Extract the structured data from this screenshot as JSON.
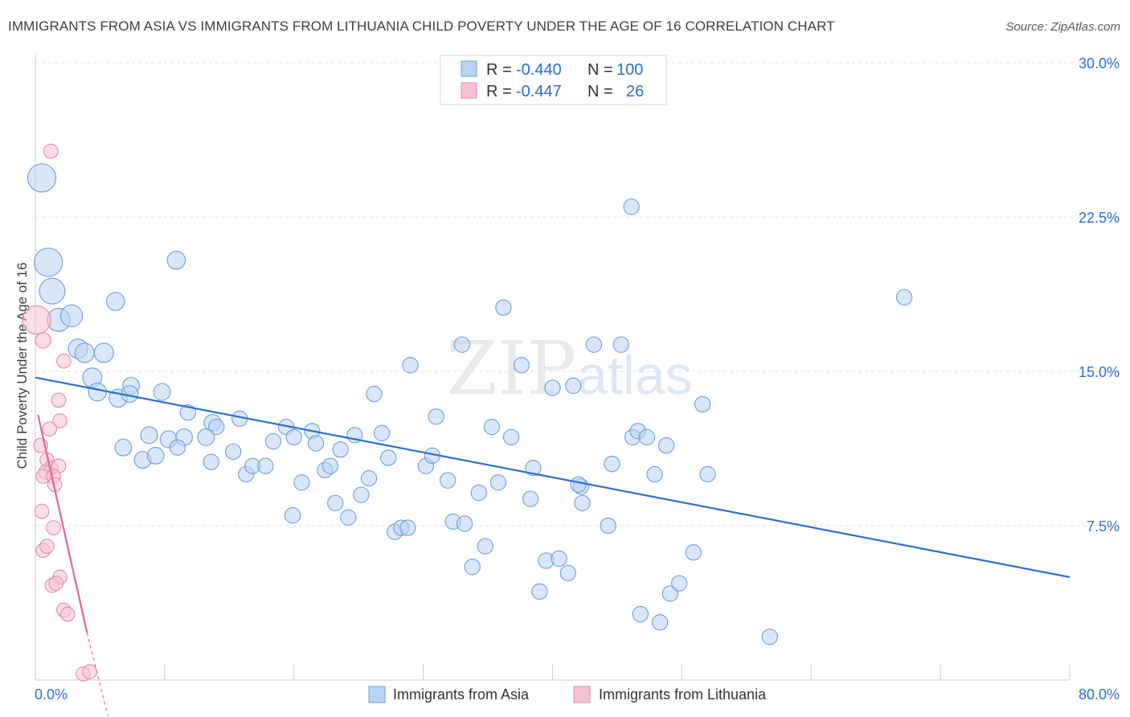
{
  "title": "IMMIGRANTS FROM ASIA VS IMMIGRANTS FROM LITHUANIA CHILD POVERTY UNDER THE AGE OF 16 CORRELATION CHART",
  "source": "Source: ZipAtlas.com",
  "watermark": {
    "zip": "ZIP",
    "atlas": "atlas"
  },
  "colors": {
    "asia_fill": "#b9d3f2",
    "asia_stroke": "#6e9fdb",
    "asia_line": "#2d6fcf",
    "lith_fill": "#f7c3d3",
    "lith_stroke": "#e48aa8",
    "lith_line": "#e06690",
    "value_text": "#2d6fcf",
    "label_text": "#333333"
  },
  "stats": {
    "asia": {
      "r_label": "R =",
      "r": "-0.440",
      "n_label": "N =",
      "n": "100"
    },
    "lith": {
      "r_label": "R =",
      "r": "-0.447",
      "n_label": "N =",
      "n": "26"
    }
  },
  "chart_data": {
    "type": "scatter",
    "xlabel": "",
    "ylabel": "Child Poverty Under the Age of 16",
    "xlim": [
      0,
      80
    ],
    "ylim": [
      0,
      30
    ],
    "x_tick_labels": [
      {
        "value": 0,
        "label": "0.0%"
      },
      {
        "value": 80,
        "label": "80.0%"
      }
    ],
    "y_tick_labels": [
      {
        "value": 7.5,
        "label": "7.5%"
      },
      {
        "value": 15,
        "label": "15.0%"
      },
      {
        "value": 22.5,
        "label": "22.5%"
      },
      {
        "value": 30,
        "label": "30.0%"
      }
    ],
    "grid": "horizontal dashed",
    "legend_position": "bottom-center",
    "series": [
      {
        "name": "Immigrants from Asia",
        "trend": {
          "x": [
            0,
            80
          ],
          "y": [
            14.7,
            5.0
          ]
        },
        "points": [
          [
            0.5,
            24.4,
            2.2
          ],
          [
            1,
            20.3,
            2.2
          ],
          [
            1.3,
            18.9,
            2
          ],
          [
            1.8,
            17.5,
            1.8
          ],
          [
            2.8,
            17.7,
            1.7
          ],
          [
            3.3,
            16.1,
            1.5
          ],
          [
            3.8,
            15.9,
            1.5
          ],
          [
            5.3,
            15.9,
            1.5
          ],
          [
            4.4,
            14.7,
            1.5
          ],
          [
            4.8,
            14.0,
            1.4
          ],
          [
            6.2,
            18.4,
            1.4
          ],
          [
            6.4,
            13.7,
            1.4
          ],
          [
            7.4,
            14.3,
            1.3
          ],
          [
            9.8,
            14.0,
            1.3
          ],
          [
            7.3,
            13.9,
            1.3
          ],
          [
            10.9,
            20.4,
            1.4
          ],
          [
            11.8,
            13.0,
            1.2
          ],
          [
            13.7,
            12.5,
            1.3
          ],
          [
            14.0,
            12.3,
            1.2
          ],
          [
            15.8,
            12.7,
            1.2
          ],
          [
            6.8,
            11.3,
            1.3
          ],
          [
            8.8,
            11.9,
            1.3
          ],
          [
            10.3,
            11.7,
            1.3
          ],
          [
            11.5,
            11.8,
            1.3
          ],
          [
            11.0,
            11.3,
            1.2
          ],
          [
            13.2,
            11.8,
            1.3
          ],
          [
            8.3,
            10.7,
            1.3
          ],
          [
            9.3,
            10.9,
            1.3
          ],
          [
            13.6,
            10.6,
            1.2
          ],
          [
            15.3,
            11.1,
            1.2
          ],
          [
            16.3,
            10.0,
            1.2
          ],
          [
            16.8,
            10.4,
            1.2
          ],
          [
            17.8,
            10.4,
            1.2
          ],
          [
            18.4,
            11.6,
            1.2
          ],
          [
            19.4,
            12.3,
            1.2
          ],
          [
            19.9,
            8.0,
            1.2
          ],
          [
            20.0,
            11.8,
            1.2
          ],
          [
            20.6,
            9.6,
            1.2
          ],
          [
            21.4,
            12.1,
            1.2
          ],
          [
            21.7,
            11.5,
            1.2
          ],
          [
            22.4,
            10.2,
            1.2
          ],
          [
            22.8,
            10.4,
            1.2
          ],
          [
            23.2,
            8.6,
            1.2
          ],
          [
            23.6,
            11.2,
            1.2
          ],
          [
            24.2,
            7.9,
            1.2
          ],
          [
            24.7,
            11.9,
            1.2
          ],
          [
            25.2,
            9.0,
            1.2
          ],
          [
            25.8,
            9.8,
            1.2
          ],
          [
            26.2,
            13.9,
            1.2
          ],
          [
            26.8,
            12.0,
            1.2
          ],
          [
            27.3,
            10.8,
            1.2
          ],
          [
            27.8,
            7.2,
            1.2
          ],
          [
            28.3,
            7.4,
            1.2
          ],
          [
            28.8,
            7.4,
            1.2
          ],
          [
            29.0,
            15.3,
            1.2
          ],
          [
            30.2,
            10.4,
            1.2
          ],
          [
            30.7,
            10.9,
            1.2
          ],
          [
            31.0,
            12.8,
            1.2
          ],
          [
            31.9,
            9.7,
            1.2
          ],
          [
            32.3,
            7.7,
            1.2
          ],
          [
            33.0,
            16.3,
            1.2
          ],
          [
            33.2,
            7.6,
            1.2
          ],
          [
            33.8,
            5.5,
            1.2
          ],
          [
            34.3,
            9.1,
            1.2
          ],
          [
            34.8,
            6.5,
            1.2
          ],
          [
            35.3,
            12.3,
            1.2
          ],
          [
            35.8,
            9.6,
            1.2
          ],
          [
            36.2,
            18.1,
            1.2
          ],
          [
            36.8,
            11.8,
            1.2
          ],
          [
            37.6,
            15.3,
            1.2
          ],
          [
            38.3,
            8.8,
            1.2
          ],
          [
            38.5,
            10.3,
            1.2
          ],
          [
            39.0,
            4.3,
            1.2
          ],
          [
            39.5,
            5.8,
            1.2
          ],
          [
            40.0,
            14.2,
            1.2
          ],
          [
            40.5,
            5.9,
            1.2
          ],
          [
            41.2,
            5.2,
            1.2
          ],
          [
            41.6,
            14.3,
            1.2
          ],
          [
            42.2,
            9.4,
            1.2
          ],
          [
            42.3,
            8.6,
            1.2
          ],
          [
            43.2,
            16.3,
            1.2
          ],
          [
            42.0,
            9.5,
            1.2
          ],
          [
            44.3,
            7.5,
            1.2
          ],
          [
            44.6,
            10.5,
            1.2
          ],
          [
            45.3,
            16.3,
            1.2
          ],
          [
            46.2,
            11.8,
            1.2
          ],
          [
            46.6,
            12.1,
            1.2
          ],
          [
            47.3,
            11.8,
            1.2
          ],
          [
            46.8,
            3.2,
            1.2
          ],
          [
            46.1,
            23.0,
            1.2
          ],
          [
            48.3,
            2.8,
            1.2
          ],
          [
            47.9,
            10.0,
            1.2
          ],
          [
            49.1,
            4.2,
            1.2
          ],
          [
            49.8,
            4.7,
            1.2
          ],
          [
            50.9,
            6.2,
            1.2
          ],
          [
            51.6,
            13.4,
            1.2
          ],
          [
            52.0,
            10.0,
            1.2
          ],
          [
            56.8,
            2.1,
            1.2
          ],
          [
            67.2,
            18.6,
            1.2
          ],
          [
            48.8,
            11.4,
            1.2
          ]
        ]
      },
      {
        "name": "Immigrants from Lithuania",
        "trend": {
          "x": [
            0.2,
            4.0
          ],
          "y": [
            12.9,
            2.3
          ],
          "dash_to": [
            5.6,
            -2.2
          ]
        },
        "points": [
          [
            0.1,
            17.5,
            2.2
          ],
          [
            1.2,
            25.7,
            1.1
          ],
          [
            0.6,
            16.5,
            1.2
          ],
          [
            2.2,
            15.5,
            1.1
          ],
          [
            1.8,
            13.6,
            1.1
          ],
          [
            1.9,
            12.6,
            1.1
          ],
          [
            1.1,
            12.2,
            1.1
          ],
          [
            0.4,
            11.4,
            1.1
          ],
          [
            0.9,
            10.7,
            1.1
          ],
          [
            1.2,
            10.3,
            1.1
          ],
          [
            1.8,
            10.4,
            1.1
          ],
          [
            0.8,
            10.1,
            1.1
          ],
          [
            0.6,
            9.9,
            1.1
          ],
          [
            1.4,
            9.9,
            1.1
          ],
          [
            1.5,
            9.5,
            1.1
          ],
          [
            0.5,
            8.2,
            1.1
          ],
          [
            1.4,
            7.4,
            1.1
          ],
          [
            0.6,
            6.3,
            1.1
          ],
          [
            0.9,
            6.5,
            1.1
          ],
          [
            1.9,
            5.0,
            1.1
          ],
          [
            1.3,
            4.6,
            1.1
          ],
          [
            1.6,
            4.7,
            1.1
          ],
          [
            2.2,
            3.4,
            1.1
          ],
          [
            2.5,
            3.2,
            1.1
          ],
          [
            3.7,
            0.3,
            1.1
          ],
          [
            4.2,
            0.4,
            1.1
          ]
        ]
      }
    ]
  }
}
